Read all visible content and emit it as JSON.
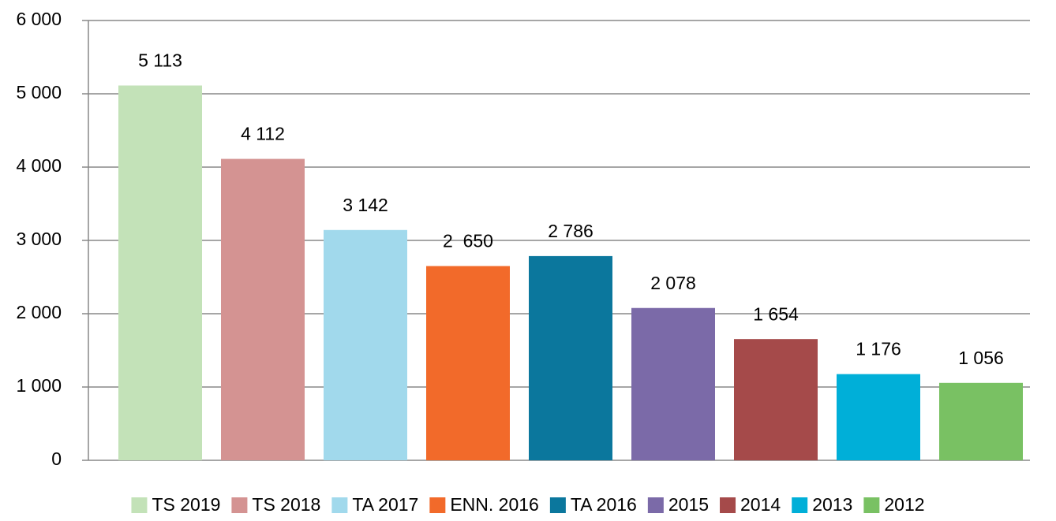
{
  "chart_data": {
    "type": "bar",
    "categories": [
      "TS 2019",
      "TS 2018",
      "TA 2017",
      "ENN. 2016",
      "TA 2016",
      "2015",
      "2014",
      "2013",
      "2012"
    ],
    "values": [
      5113,
      4112,
      3142,
      2650,
      2786,
      2078,
      1654,
      1176,
      1056
    ],
    "value_labels": [
      "5 113",
      "4 112",
      "3 142",
      "2  650",
      "2 786",
      "2 078",
      "1 654",
      "1 176",
      "1 056"
    ],
    "colors": [
      "#c3e2b8",
      "#d49392",
      "#a1d9ec",
      "#f26a2a",
      "#0b779d",
      "#7b6aa8",
      "#a54a4a",
      "#00afd8",
      "#79c163"
    ],
    "ylim": [
      0,
      6000
    ],
    "yticks": [
      0,
      {
        "value": 1000,
        "label": "1 000"
      },
      {
        "value": 2000,
        "label": "2 000"
      },
      {
        "value": 3000,
        "label": "3 000"
      },
      {
        "value": 4000,
        "label": "4 000"
      },
      {
        "value": 5000,
        "label": "5 000"
      },
      {
        "value": 6000,
        "label": "6 000"
      }
    ],
    "grid": true,
    "legend": "bottom"
  }
}
